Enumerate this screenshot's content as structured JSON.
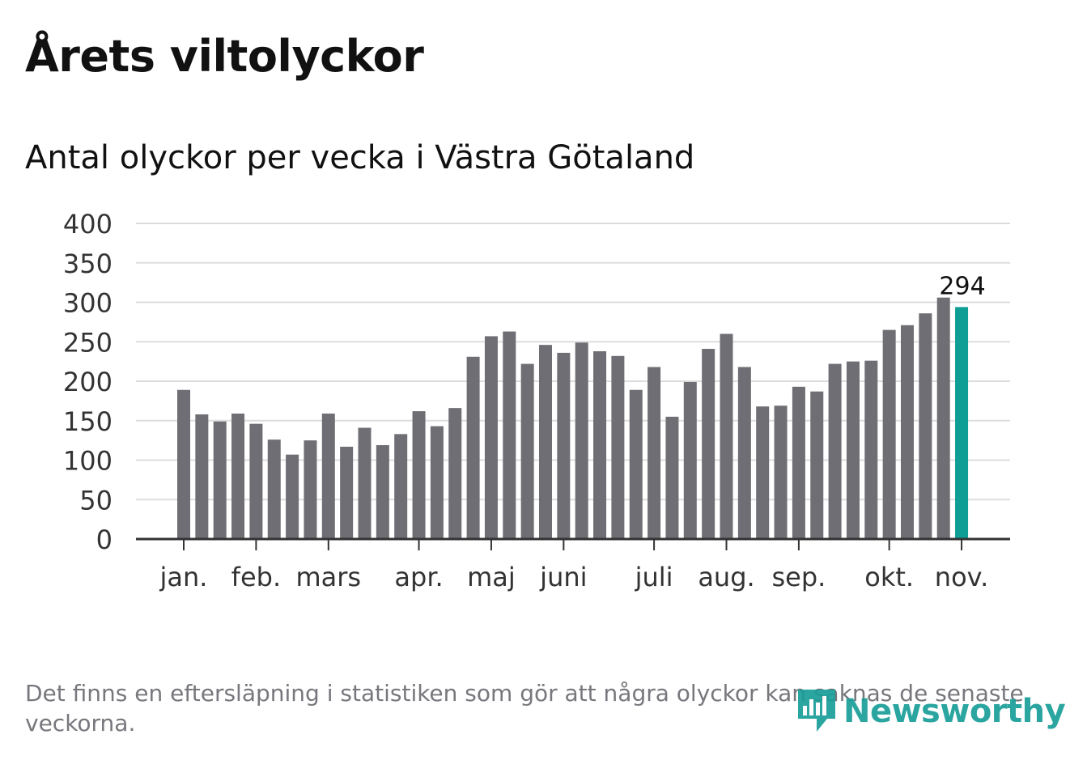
{
  "chart_data": {
    "type": "bar",
    "title": "Årets viltolyckor",
    "subtitle": "Antal olyckor per vecka i Västra Götaland",
    "xlabel": "",
    "ylabel": "",
    "ylim": [
      0,
      400
    ],
    "yticks": [
      "0",
      "50",
      "100",
      "150",
      "200",
      "250",
      "300",
      "350",
      "400"
    ],
    "grid": true,
    "values": [
      189,
      158,
      149,
      159,
      146,
      126,
      107,
      125,
      159,
      117,
      141,
      119,
      133,
      162,
      143,
      166,
      231,
      257,
      263,
      222,
      246,
      236,
      249,
      238,
      232,
      189,
      218,
      155,
      199,
      241,
      260,
      218,
      168,
      169,
      193,
      187,
      222,
      225,
      226,
      265,
      271,
      286,
      306,
      294
    ],
    "highlight_index": 43,
    "highlight_label": "294",
    "month_ticks": [
      {
        "label": "jan.",
        "week": 0
      },
      {
        "label": "feb.",
        "week": 4
      },
      {
        "label": "mars",
        "week": 8
      },
      {
        "label": "apr.",
        "week": 13
      },
      {
        "label": "maj",
        "week": 17
      },
      {
        "label": "juni",
        "week": 21
      },
      {
        "label": "juli",
        "week": 26
      },
      {
        "label": "aug.",
        "week": 30
      },
      {
        "label": "sep.",
        "week": 34
      },
      {
        "label": "okt.",
        "week": 39
      },
      {
        "label": "nov.",
        "week": 43
      }
    ],
    "colors": {
      "bar": "#6f6e74",
      "highlight": "#0f9e96",
      "grid": "#dddddd",
      "axis": "#333333",
      "tick_label": "#333333"
    }
  },
  "footnote": "Det finns en eftersläpning i statistiken som gör att några olyckor kan saknas de senaste veckorna.",
  "logo": {
    "icon": "newsworthy-logo-icon",
    "text": "Newsworthy",
    "color": "#1a9e98"
  }
}
